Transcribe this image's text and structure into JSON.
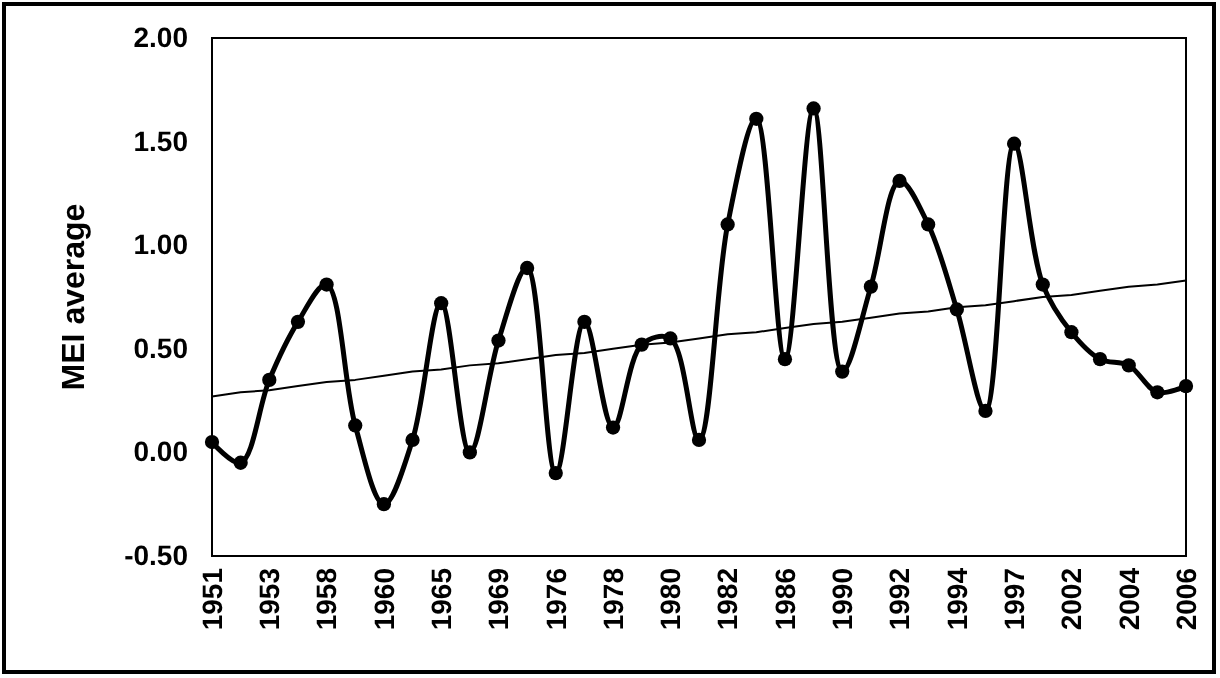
{
  "chart_data": {
    "type": "line",
    "ylabel": "MEI average",
    "categories": [
      "1951",
      null,
      "1953",
      null,
      "1958",
      null,
      "1960",
      null,
      "1965",
      null,
      "1969",
      null,
      "1976",
      null,
      "1978",
      null,
      "1980",
      null,
      "1982",
      null,
      "1986",
      null,
      "1990",
      null,
      "1992",
      null,
      "1994",
      null,
      "1997",
      null,
      "2002",
      null,
      "2004",
      null,
      "2006"
    ],
    "ylim": [
      -0.5,
      2.0
    ],
    "yticks": [
      {
        "value": -0.5,
        "label": "-0.50"
      },
      {
        "value": 0,
        "label": "0.00"
      },
      {
        "value": 0.5,
        "label": "0.50"
      },
      {
        "value": 1,
        "label": "1.00"
      },
      {
        "value": 1.5,
        "label": "1.50"
      },
      {
        "value": 2,
        "label": "2.00"
      }
    ],
    "grid": false,
    "series": [
      {
        "color": "#000000",
        "marker": "circle",
        "values": [
          0.05,
          -0.05,
          0.35,
          0.63,
          0.81,
          0.13,
          -0.25,
          0.06,
          0.72,
          0.0,
          0.54,
          0.89,
          -0.1,
          0.63,
          0.12,
          0.52,
          0.55,
          0.06,
          1.1,
          1.61,
          0.45,
          1.66,
          0.39,
          0.8,
          1.31,
          1.1,
          0.69,
          0.2,
          1.49,
          0.81,
          0.58,
          0.45,
          0.42,
          0.29,
          0.32
        ]
      },
      {
        "type": "line",
        "color": "#000000",
        "marker": "none",
        "values": [
          0.27,
          0.29,
          0.3,
          0.32,
          0.34,
          0.35,
          0.37,
          0.39,
          0.4,
          0.42,
          0.43,
          0.45,
          0.47,
          0.48,
          0.5,
          0.52,
          0.53,
          0.55,
          0.57,
          0.58,
          0.6,
          0.62,
          0.63,
          0.65,
          0.67,
          0.68,
          0.7,
          0.71,
          0.73,
          0.75,
          0.76,
          0.78,
          0.8,
          0.81,
          0.83
        ]
      }
    ]
  }
}
